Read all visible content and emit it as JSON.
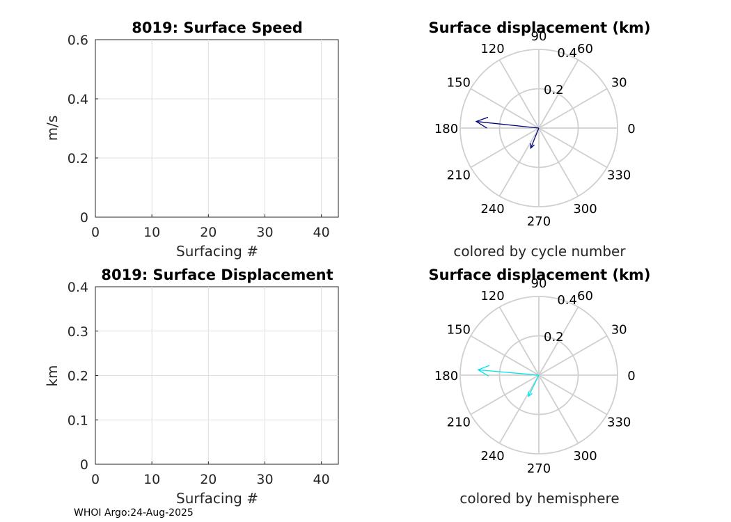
{
  "chart_data": [
    {
      "type": "line",
      "title": "8019: Surface Speed",
      "xlabel": "Surfacing #",
      "ylabel": "m/s",
      "xlim": [
        0,
        43
      ],
      "ylim": [
        0,
        0.6
      ],
      "xticks": [
        "0",
        "10",
        "20",
        "30",
        "40"
      ],
      "yticks": [
        "0",
        "0.2",
        "0.4",
        "0.6"
      ],
      "grid": true,
      "series": []
    },
    {
      "type": "polar",
      "title": "Surface displacement (km)",
      "caption": "colored by cycle number",
      "rmax": 0.4,
      "rticks": [
        "0.2",
        "0.4"
      ],
      "angle_ticks": [
        "0",
        "30",
        "60",
        "90",
        "120",
        "150",
        "180",
        "210",
        "240",
        "270",
        "300",
        "330"
      ],
      "color": "#00007a",
      "vectors": [
        {
          "angle_deg": 174,
          "r": 0.32
        },
        {
          "angle_deg": 248,
          "r": 0.11
        }
      ]
    },
    {
      "type": "line",
      "title": "8019: Surface Displacement",
      "xlabel": "Surfacing #",
      "ylabel": "km",
      "xlim": [
        0,
        43
      ],
      "ylim": [
        0,
        0.4
      ],
      "xticks": [
        "0",
        "10",
        "20",
        "30",
        "40"
      ],
      "yticks": [
        "0",
        "0.1",
        "0.2",
        "0.3",
        "0.4"
      ],
      "grid": true,
      "series": []
    },
    {
      "type": "polar",
      "title": "Surface displacement (km)",
      "caption": "colored by hemisphere",
      "rmax": 0.4,
      "rticks": [
        "0.2",
        "0.4"
      ],
      "angle_ticks": [
        "0",
        "30",
        "60",
        "90",
        "120",
        "150",
        "180",
        "210",
        "240",
        "270",
        "300",
        "330"
      ],
      "color": "#00e5ee",
      "vectors": [
        {
          "angle_deg": 175,
          "r": 0.31
        },
        {
          "angle_deg": 244,
          "r": 0.12
        }
      ]
    }
  ],
  "footer": "WHOI Argo:24-Aug-2025"
}
